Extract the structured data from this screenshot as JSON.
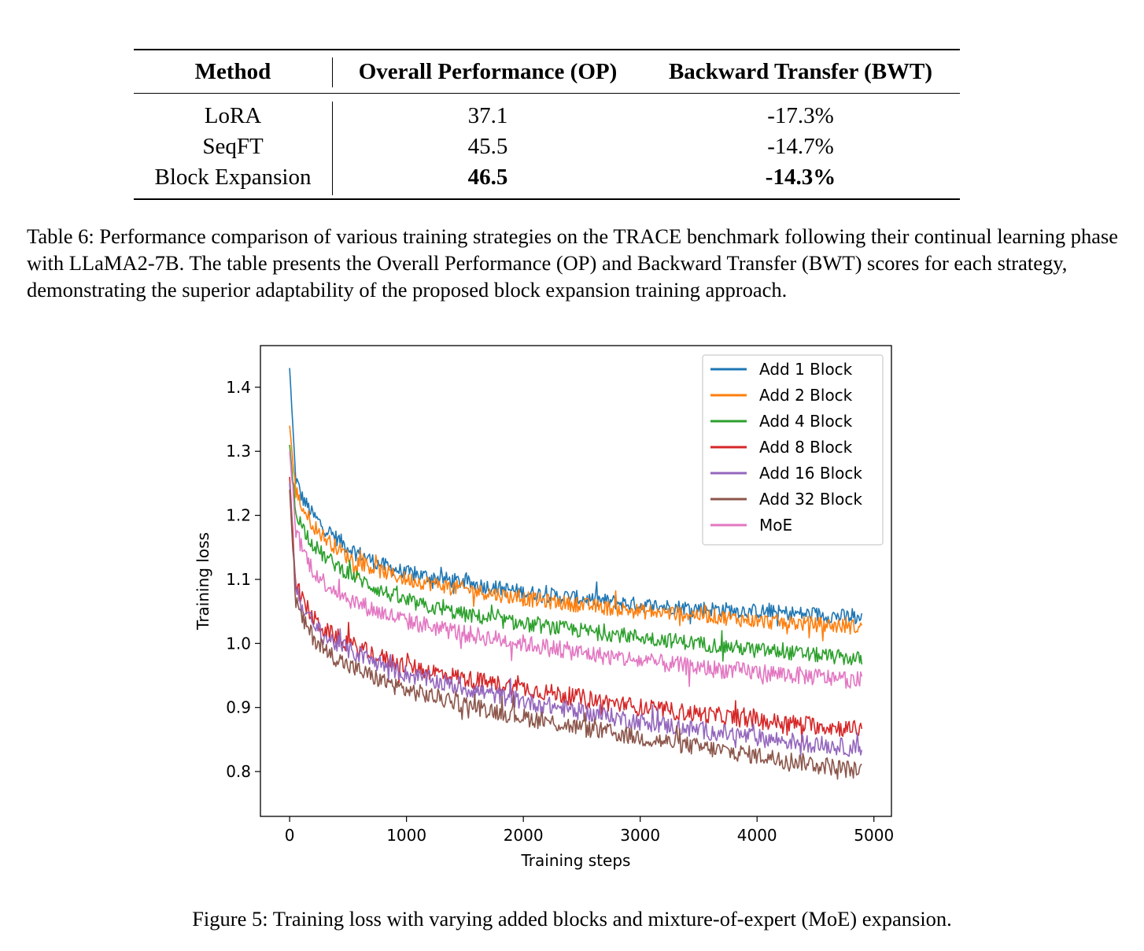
{
  "table": {
    "headers": [
      "Method",
      "Overall Performance (OP)",
      "Backward Transfer (BWT)"
    ],
    "rows": [
      {
        "method": "LoRA",
        "op": "37.1",
        "bwt": "-17.3%"
      },
      {
        "method": "SeqFT",
        "op": "45.5",
        "bwt": "-14.7%"
      },
      {
        "method": "Block Expansion",
        "op": "46.5",
        "bwt": "-14.3%"
      }
    ],
    "caption": "Table 6: Performance comparison of various training strategies on the TRACE benchmark following their continual learning phase with LLaMA2-7B. The table presents the Overall Performance (OP) and Backward Transfer (BWT) scores for each strategy, demonstrating the superior adaptability of the proposed block expansion training approach."
  },
  "figure": {
    "caption": "Figure 5: Training loss with varying added blocks and mixture-of-expert (MoE) expansion."
  },
  "chart_data": {
    "type": "line",
    "title": "",
    "xlabel": "Training steps",
    "ylabel": "Training loss",
    "xlim": [
      -250,
      5150
    ],
    "ylim": [
      0.73,
      1.465
    ],
    "xticks": [
      0,
      1000,
      2000,
      3000,
      4000,
      5000
    ],
    "yticks": [
      0.8,
      0.9,
      1.0,
      1.1,
      1.2,
      1.3,
      1.4
    ],
    "legend_position": "top-right",
    "grid": false,
    "x": [
      0,
      50,
      100,
      200,
      300,
      500,
      750,
      1000,
      1500,
      2000,
      2500,
      3000,
      3500,
      4000,
      4500,
      4900
    ],
    "series": [
      {
        "name": "Add 1 Block",
        "color": "#1f77b4",
        "values": [
          1.43,
          1.26,
          1.23,
          1.2,
          1.18,
          1.15,
          1.125,
          1.11,
          1.095,
          1.08,
          1.07,
          1.06,
          1.055,
          1.05,
          1.045,
          1.04
        ]
      },
      {
        "name": "Add 2 Block",
        "color": "#ff7f0e",
        "values": [
          1.34,
          1.24,
          1.215,
          1.185,
          1.165,
          1.135,
          1.115,
          1.1,
          1.085,
          1.07,
          1.06,
          1.05,
          1.045,
          1.035,
          1.03,
          1.025
        ]
      },
      {
        "name": "Add 4 Block",
        "color": "#2ca02c",
        "values": [
          1.31,
          1.21,
          1.185,
          1.155,
          1.135,
          1.11,
          1.085,
          1.065,
          1.045,
          1.03,
          1.02,
          1.01,
          1.0,
          0.99,
          0.982,
          0.975
        ]
      },
      {
        "name": "Add 8 Block",
        "color": "#d62728",
        "values": [
          1.26,
          1.1,
          1.07,
          1.04,
          1.02,
          1.0,
          0.98,
          0.965,
          0.945,
          0.93,
          0.915,
          0.9,
          0.89,
          0.88,
          0.872,
          0.865
        ]
      },
      {
        "name": "Add 16 Block",
        "color": "#9467bd",
        "values": [
          1.25,
          1.09,
          1.06,
          1.03,
          1.01,
          0.99,
          0.97,
          0.952,
          0.93,
          0.91,
          0.893,
          0.878,
          0.865,
          0.853,
          0.843,
          0.835
        ]
      },
      {
        "name": "Add 32 Block",
        "color": "#8c564b",
        "values": [
          1.24,
          1.07,
          1.04,
          1.01,
          0.99,
          0.965,
          0.945,
          0.927,
          0.905,
          0.885,
          0.868,
          0.853,
          0.838,
          0.825,
          0.812,
          0.8
        ]
      },
      {
        "name": "MoE",
        "color": "#e377c2",
        "values": [
          1.3,
          1.18,
          1.15,
          1.115,
          1.095,
          1.07,
          1.05,
          1.035,
          1.015,
          1.0,
          0.985,
          0.973,
          0.962,
          0.955,
          0.948,
          0.942
        ]
      }
    ]
  }
}
